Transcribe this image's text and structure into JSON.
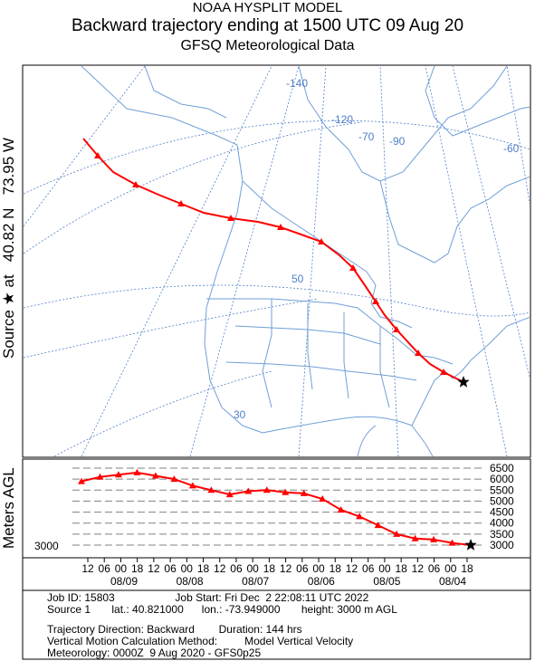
{
  "header": {
    "line1": "NOAA HYSPLIT MODEL",
    "line2": "Backward trajectory ending at 1500 UTC 09 Aug 20",
    "line3": "GFSQ Meteorological Data"
  },
  "side": {
    "source_label": "Source ★ at",
    "lat": "40.82 N",
    "lon": "73.95 W",
    "height_axis": "Meters AGL"
  },
  "map": {
    "longitude_labels": [
      "-140",
      "-120",
      "-70",
      "-90",
      "-60"
    ],
    "latitude_labels": [
      "50",
      "30"
    ],
    "colors": {
      "trajectory": "#ff0000",
      "coast": "#6f9fd8",
      "grid": "#4f7fc8",
      "source_marker": "#000000"
    }
  },
  "chart_data": {
    "type": "line",
    "series": [
      {
        "values": [
          3000,
          3100,
          3250,
          3300,
          3500,
          3900,
          4300,
          4600,
          5100,
          5350,
          5400,
          5500,
          5450,
          5300,
          5500,
          5700,
          6000,
          6150,
          6300,
          6200,
          6100,
          5900
        ]
      }
    ],
    "x_tick_labels": [
      "12",
      "06",
      "00",
      "18",
      "12",
      "06",
      "00",
      "18",
      "12",
      "06",
      "00",
      "18",
      "12",
      "06",
      "00",
      "18",
      "12",
      "06",
      "00",
      "18",
      "12",
      "06",
      "00",
      "18"
    ],
    "date_labels": [
      "08/09",
      "08/08",
      "08/07",
      "08/06",
      "08/05",
      "08/04"
    ],
    "y_tick_labels": [
      "6500",
      "6000",
      "5500",
      "5000",
      "4500",
      "4000",
      "3500",
      "3000"
    ],
    "ylim": [
      3000,
      6500
    ],
    "source_height_label": "3000",
    "ylabel": "Meters AGL",
    "grid": true
  },
  "info": {
    "line1": "Job ID: 15803                    Job Start: Fri Dec  2 22:08:11 UTC 2022",
    "line2": "Source 1       lat.: 40.821000      lon.: -73.949000       height: 3000 m AGL",
    "line3": "Trajectory Direction: Backward        Duration: 144 hrs",
    "line4": "Vertical Motion Calculation Method:         Model Vertical Velocity",
    "line5": "Meteorology: 0000Z  9 Aug 2020 - GFS0p25"
  }
}
